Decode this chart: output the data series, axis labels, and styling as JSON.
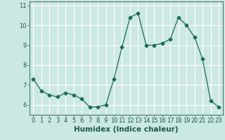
{
  "x": [
    0,
    1,
    2,
    3,
    4,
    5,
    6,
    7,
    8,
    9,
    10,
    11,
    12,
    13,
    14,
    15,
    16,
    17,
    18,
    19,
    20,
    21,
    22,
    23
  ],
  "y": [
    7.3,
    6.7,
    6.5,
    6.4,
    6.6,
    6.5,
    6.3,
    5.9,
    5.9,
    6.0,
    7.3,
    8.9,
    10.4,
    10.6,
    9.0,
    9.0,
    9.1,
    9.3,
    10.4,
    10.0,
    9.4,
    8.3,
    6.2,
    5.9
  ],
  "xlabel": "Humidex (Indice chaleur)",
  "xlim": [
    -0.5,
    23.5
  ],
  "ylim": [
    5.5,
    11.2
  ],
  "yticks": [
    6,
    7,
    8,
    9,
    10,
    11
  ],
  "xticks": [
    0,
    1,
    2,
    3,
    4,
    5,
    6,
    7,
    8,
    9,
    10,
    11,
    12,
    13,
    14,
    15,
    16,
    17,
    18,
    19,
    20,
    21,
    22,
    23
  ],
  "line_color": "#1a6b5a",
  "marker": "D",
  "marker_size": 2.5,
  "bg_color": "#cce8e4",
  "grid_color": "#ffffff",
  "axes_color": "#4a7a6a",
  "label_color": "#1a5a4a",
  "tick_color": "#1a5a4a",
  "label_fontsize": 7.5,
  "tick_fontsize": 6.0
}
